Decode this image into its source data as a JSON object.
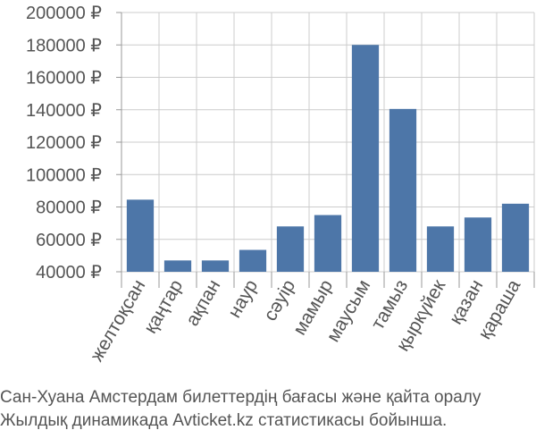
{
  "chart_data": {
    "type": "bar",
    "categories": [
      "желтоқсан",
      "қаңтар",
      "ақпан",
      "наур",
      "сәуір",
      "мамыр",
      "маусым",
      "тамыз",
      "қыркүйек",
      "қазан",
      "қараша"
    ],
    "values": [
      84500,
      47000,
      47000,
      53500,
      68000,
      75000,
      180000,
      140500,
      68000,
      73500,
      82000
    ],
    "ylim": [
      40000,
      200000
    ],
    "yticks": [
      40000,
      60000,
      80000,
      100000,
      120000,
      140000,
      160000,
      180000,
      200000
    ],
    "y_tick_labels": [
      "40000 ₽",
      "60000 ₽",
      "80000 ₽",
      "100000 ₽",
      "120000 ₽",
      "140000 ₽",
      "160000 ₽",
      "180000 ₽",
      "200000 ₽"
    ],
    "grid": true,
    "bar_color": "#4d76a8",
    "grid_color": "#cccccc",
    "axis_color": "#999999"
  },
  "caption": {
    "line1": "Сан-Хуана Амстердам билеттердің бағасы және қайта оралу",
    "line2": "Жылдық динамикада Avticket.kz статистикасы бойынша."
  }
}
